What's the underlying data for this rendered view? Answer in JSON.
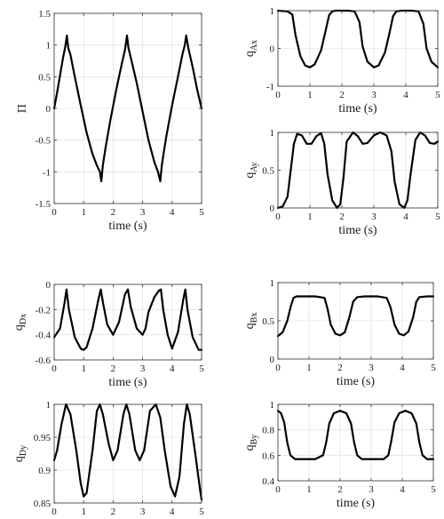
{
  "chart_data": [
    {
      "id": "pi",
      "type": "line",
      "xlabel": "time (s)",
      "ylabel": "Π",
      "ylabel_sub": "",
      "xlim": [
        0,
        5
      ],
      "ylim": [
        -1.5,
        1.5
      ],
      "xticks": [
        0,
        1,
        2,
        3,
        4,
        5
      ],
      "yticks": [
        -1.5,
        -1,
        -0.5,
        0,
        0.5,
        1,
        1.5
      ],
      "yticklabels": [
        "-1.5",
        "-1",
        "-0.5",
        "0",
        "0.5",
        "1",
        "1.5"
      ],
      "grid": true,
      "series": [
        {
          "x": [
            0,
            0.1,
            0.2,
            0.3,
            0.38,
            0.43,
            0.48,
            0.55,
            0.7,
            0.9,
            1.1,
            1.3,
            1.45,
            1.55,
            1.6,
            1.65,
            1.75,
            1.9,
            2.1,
            2.3,
            2.4,
            2.47,
            2.52,
            2.6,
            2.8,
            3.0,
            3.2,
            3.4,
            3.52,
            3.6,
            3.65,
            3.7,
            3.8,
            4.0,
            4.2,
            4.35,
            4.43,
            4.48,
            4.55,
            4.7,
            4.85,
            5.0
          ],
          "y": [
            0.0,
            0.25,
            0.52,
            0.8,
            0.98,
            1.15,
            0.95,
            0.85,
            0.5,
            0.05,
            -0.38,
            -0.72,
            -0.9,
            -1.0,
            -1.15,
            -0.9,
            -0.6,
            -0.2,
            0.28,
            0.72,
            0.92,
            1.15,
            0.95,
            0.8,
            0.4,
            -0.05,
            -0.5,
            -0.85,
            -1.0,
            -1.15,
            -0.9,
            -0.75,
            -0.45,
            0.05,
            0.5,
            0.85,
            1.0,
            1.15,
            0.95,
            0.65,
            0.3,
            0.0
          ]
        }
      ]
    },
    {
      "id": "qAx",
      "type": "line",
      "xlabel": "time (s)",
      "ylabel": "q",
      "ylabel_sub": "Ax",
      "xlim": [
        0,
        5
      ],
      "ylim": [
        -1,
        1
      ],
      "xticks": [
        0,
        1,
        2,
        3,
        4,
        5
      ],
      "yticks": [
        -1,
        0,
        1
      ],
      "yticklabels": [
        "-1",
        "0",
        "1"
      ],
      "grid": true,
      "series": [
        {
          "x": [
            0,
            0.3,
            0.45,
            0.55,
            0.7,
            0.85,
            1.0,
            1.15,
            1.35,
            1.5,
            1.6,
            1.7,
            1.8,
            2.0,
            2.2,
            2.4,
            2.55,
            2.65,
            2.8,
            3.0,
            3.15,
            3.35,
            3.5,
            3.6,
            3.7,
            3.85,
            4.0,
            4.2,
            4.4,
            4.55,
            4.65,
            4.8,
            5.0
          ],
          "y": [
            1.0,
            0.98,
            0.9,
            0.35,
            -0.2,
            -0.45,
            -0.5,
            -0.42,
            -0.05,
            0.5,
            0.88,
            0.98,
            1.0,
            1.0,
            1.0,
            0.98,
            0.7,
            0.05,
            -0.35,
            -0.5,
            -0.45,
            -0.1,
            0.45,
            0.85,
            0.98,
            1.0,
            1.0,
            1.0,
            0.98,
            0.65,
            0.0,
            -0.35,
            -0.5
          ]
        }
      ]
    },
    {
      "id": "qAy",
      "type": "line",
      "xlabel": "time (s)",
      "ylabel": "q",
      "ylabel_sub": "Ay",
      "xlim": [
        0,
        5
      ],
      "ylim": [
        0,
        1
      ],
      "xticks": [
        0,
        1,
        2,
        3,
        4,
        5
      ],
      "yticks": [
        0,
        0.5,
        1
      ],
      "yticklabels": [
        "0",
        "0.5",
        "1"
      ],
      "grid": true,
      "series": [
        {
          "x": [
            0,
            0.15,
            0.3,
            0.4,
            0.5,
            0.6,
            0.75,
            0.9,
            1.05,
            1.2,
            1.35,
            1.45,
            1.55,
            1.7,
            1.85,
            1.95,
            2.05,
            2.15,
            2.35,
            2.5,
            2.65,
            2.8,
            3.0,
            3.2,
            3.4,
            3.55,
            3.65,
            3.8,
            3.95,
            4.05,
            4.15,
            4.3,
            4.45,
            4.6,
            4.75,
            4.9,
            5.0
          ],
          "y": [
            0.0,
            0.02,
            0.15,
            0.5,
            0.85,
            0.98,
            0.96,
            0.85,
            0.85,
            0.95,
            0.99,
            0.85,
            0.45,
            0.1,
            0.0,
            0.05,
            0.4,
            0.88,
            1.0,
            0.95,
            0.85,
            0.86,
            0.96,
            1.0,
            0.96,
            0.75,
            0.35,
            0.05,
            0.0,
            0.1,
            0.45,
            0.9,
            1.0,
            0.96,
            0.86,
            0.85,
            0.88
          ]
        }
      ]
    },
    {
      "id": "qDx",
      "type": "line",
      "xlabel": "time (s)",
      "ylabel": "q",
      "ylabel_sub": "Dx",
      "xlim": [
        0,
        5
      ],
      "ylim": [
        -0.6,
        0
      ],
      "xticks": [
        0,
        1,
        2,
        3,
        4,
        5
      ],
      "yticks": [
        -0.6,
        -0.4,
        -0.2,
        0
      ],
      "yticklabels": [
        "-0.6",
        "-0.4",
        "-0.2",
        "0"
      ],
      "grid": true,
      "series": [
        {
          "x": [
            0,
            0.2,
            0.35,
            0.42,
            0.5,
            0.7,
            0.9,
            1.0,
            1.1,
            1.3,
            1.5,
            1.58,
            1.66,
            1.8,
            2.0,
            2.2,
            2.4,
            2.5,
            2.6,
            2.8,
            3.0,
            3.1,
            3.2,
            3.4,
            3.55,
            3.62,
            3.7,
            3.85,
            4.0,
            4.2,
            4.38,
            4.45,
            4.52,
            4.7,
            4.9,
            5.0
          ],
          "y": [
            -0.42,
            -0.35,
            -0.15,
            -0.04,
            -0.2,
            -0.42,
            -0.51,
            -0.52,
            -0.5,
            -0.35,
            -0.12,
            -0.04,
            -0.15,
            -0.32,
            -0.4,
            -0.3,
            -0.08,
            -0.04,
            -0.18,
            -0.35,
            -0.4,
            -0.35,
            -0.22,
            -0.1,
            -0.05,
            -0.04,
            -0.2,
            -0.4,
            -0.51,
            -0.38,
            -0.12,
            -0.04,
            -0.2,
            -0.42,
            -0.52,
            -0.52
          ]
        }
      ]
    },
    {
      "id": "qBx",
      "type": "line",
      "xlabel": "time (s)",
      "ylabel": "q",
      "ylabel_sub": "Bx",
      "xlim": [
        0,
        5
      ],
      "ylim": [
        0,
        1
      ],
      "xticks": [
        0,
        1,
        2,
        3,
        4,
        5
      ],
      "yticks": [
        0,
        0.5,
        1
      ],
      "yticklabels": [
        "0",
        "0.5",
        "1"
      ],
      "grid": true,
      "series": [
        {
          "x": [
            0,
            0.15,
            0.3,
            0.42,
            0.5,
            0.6,
            0.8,
            1.2,
            1.5,
            1.6,
            1.7,
            1.85,
            2.0,
            2.15,
            2.3,
            2.42,
            2.55,
            2.8,
            3.2,
            3.5,
            3.62,
            3.75,
            3.9,
            4.05,
            4.2,
            4.35,
            4.45,
            4.55,
            4.8,
            5.0
          ],
          "y": [
            0.3,
            0.35,
            0.5,
            0.7,
            0.8,
            0.82,
            0.82,
            0.82,
            0.8,
            0.65,
            0.45,
            0.33,
            0.31,
            0.35,
            0.55,
            0.75,
            0.81,
            0.82,
            0.82,
            0.8,
            0.68,
            0.45,
            0.33,
            0.31,
            0.36,
            0.55,
            0.75,
            0.81,
            0.82,
            0.82
          ]
        }
      ]
    },
    {
      "id": "qDy",
      "type": "line",
      "xlabel": "time (s)",
      "ylabel": "q",
      "ylabel_sub": "Dy",
      "xlim": [
        0,
        5
      ],
      "ylim": [
        0.85,
        1
      ],
      "xticks": [
        0,
        1,
        2,
        3,
        4,
        5
      ],
      "yticks": [
        0.85,
        0.9,
        0.95,
        1
      ],
      "yticklabels": [
        "0.85",
        "0.9",
        "0.95",
        "1"
      ],
      "grid": true,
      "series": [
        {
          "x": [
            0,
            0.1,
            0.25,
            0.4,
            0.55,
            0.75,
            0.9,
            1.0,
            1.1,
            1.3,
            1.45,
            1.55,
            1.65,
            1.85,
            2.0,
            2.15,
            2.35,
            2.45,
            2.55,
            2.75,
            2.9,
            3.05,
            3.25,
            3.45,
            3.6,
            3.75,
            3.95,
            4.1,
            4.25,
            4.4,
            4.5,
            4.6,
            4.8,
            4.95,
            5.0
          ],
          "y": [
            0.915,
            0.93,
            0.97,
            1.0,
            0.985,
            0.93,
            0.88,
            0.86,
            0.865,
            0.93,
            0.99,
            1.0,
            0.985,
            0.94,
            0.915,
            0.93,
            0.985,
            1.0,
            0.985,
            0.93,
            0.915,
            0.93,
            0.99,
            1.0,
            0.98,
            0.93,
            0.875,
            0.86,
            0.89,
            0.97,
            1.0,
            0.985,
            0.92,
            0.87,
            0.855
          ]
        }
      ]
    },
    {
      "id": "qBy",
      "type": "line",
      "xlabel": "time (s)",
      "ylabel": "q",
      "ylabel_sub": "By",
      "xlim": [
        0,
        5
      ],
      "ylim": [
        0.4,
        1
      ],
      "xticks": [
        0,
        1,
        2,
        3,
        4,
        5
      ],
      "yticks": [
        0.4,
        0.6,
        0.8,
        1
      ],
      "yticklabels": [
        "0.4",
        "0.6",
        "0.8",
        "1"
      ],
      "grid": true,
      "series": [
        {
          "x": [
            0,
            0.1,
            0.2,
            0.3,
            0.4,
            0.55,
            0.8,
            1.2,
            1.45,
            1.55,
            1.65,
            1.8,
            2.0,
            2.2,
            2.35,
            2.45,
            2.55,
            2.7,
            3.0,
            3.4,
            3.55,
            3.65,
            3.75,
            3.9,
            4.1,
            4.3,
            4.45,
            4.55,
            4.65,
            4.8,
            5.0
          ],
          "y": [
            0.95,
            0.93,
            0.86,
            0.7,
            0.6,
            0.57,
            0.57,
            0.57,
            0.6,
            0.7,
            0.85,
            0.93,
            0.95,
            0.93,
            0.85,
            0.7,
            0.6,
            0.57,
            0.57,
            0.57,
            0.6,
            0.72,
            0.86,
            0.93,
            0.95,
            0.93,
            0.85,
            0.7,
            0.6,
            0.57,
            0.57
          ]
        }
      ]
    }
  ]
}
